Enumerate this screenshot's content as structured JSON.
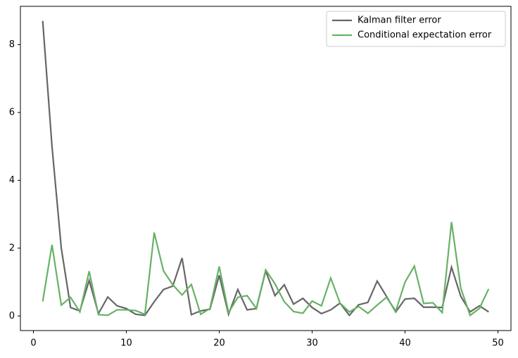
{
  "chart_data": {
    "type": "line",
    "x": [
      1,
      2,
      3,
      4,
      5,
      6,
      7,
      8,
      9,
      10,
      11,
      12,
      13,
      14,
      15,
      16,
      17,
      18,
      19,
      20,
      21,
      22,
      23,
      24,
      25,
      26,
      27,
      28,
      29,
      30,
      31,
      32,
      33,
      34,
      35,
      36,
      37,
      38,
      39,
      40,
      41,
      42,
      43,
      44,
      45,
      46,
      47,
      48,
      49
    ],
    "series": [
      {
        "name": "Kalman filter error",
        "color": "#666666",
        "values": [
          8.7,
          5.0,
          2.0,
          0.25,
          0.15,
          1.05,
          0.07,
          0.56,
          0.3,
          0.22,
          0.05,
          0.02,
          0.42,
          0.78,
          0.88,
          1.71,
          0.04,
          0.15,
          0.2,
          1.2,
          0.05,
          0.78,
          0.18,
          0.22,
          1.33,
          0.6,
          0.92,
          0.35,
          0.52,
          0.25,
          0.07,
          0.18,
          0.38,
          0.02,
          0.33,
          0.4,
          1.03,
          0.58,
          0.12,
          0.5,
          0.52,
          0.26,
          0.26,
          0.25,
          1.44,
          0.58,
          0.12,
          0.3,
          0.12
        ]
      },
      {
        "name": "Conditional expectation error",
        "color": "#66b266",
        "values": [
          0.43,
          2.1,
          0.32,
          0.55,
          0.12,
          1.32,
          0.04,
          0.02,
          0.18,
          0.18,
          0.16,
          0.05,
          2.46,
          1.33,
          0.92,
          0.62,
          0.93,
          0.05,
          0.22,
          1.46,
          0.1,
          0.55,
          0.6,
          0.22,
          1.36,
          0.95,
          0.42,
          0.13,
          0.08,
          0.44,
          0.3,
          1.12,
          0.38,
          0.12,
          0.28,
          0.08,
          0.32,
          0.55,
          0.15,
          1.0,
          1.47,
          0.37,
          0.39,
          0.1,
          2.77,
          0.82,
          0.02,
          0.22,
          0.8
        ]
      }
    ],
    "xlim": [
      -1.4,
      51.4
    ],
    "xticks": [
      0,
      10,
      20,
      30,
      40,
      50
    ],
    "ylim": [
      -0.43,
      9.13
    ],
    "yticks": [
      0,
      2,
      4,
      6,
      8
    ],
    "legend": "upper right"
  }
}
